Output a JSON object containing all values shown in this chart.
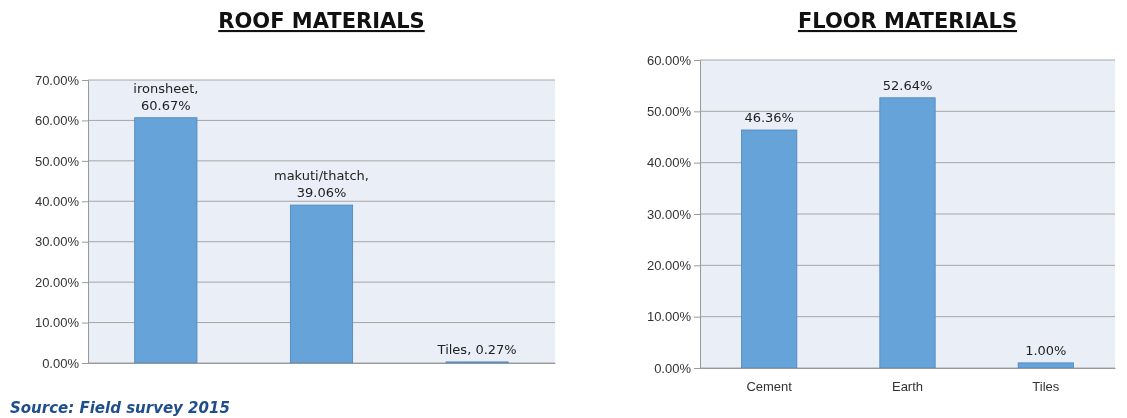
{
  "chart_data": [
    {
      "type": "bar",
      "title": "ROOF MATERIALS",
      "categories": [
        null,
        null,
        null
      ],
      "values": [
        60.67,
        39.06,
        0.27
      ],
      "color": "#66a3d8",
      "value_labels": [
        "ironsheet,\n60.67%",
        "makuti/thatch,\n39.06%",
        "Tiles, 0.27%"
      ],
      "ylim": [
        0,
        70
      ],
      "yticks": [
        {
          "value": 0,
          "label": "0.00%"
        },
        {
          "value": 10,
          "label": "10.00%"
        },
        {
          "value": 20,
          "label": "20.00%"
        },
        {
          "value": 30,
          "label": "30.00%"
        },
        {
          "value": 40,
          "label": "40.00%"
        },
        {
          "value": 50,
          "label": "50.00%"
        },
        {
          "value": 60,
          "label": "60.00%"
        },
        {
          "value": 70,
          "label": "70.00%"
        }
      ],
      "grid": "y",
      "annotations": [
        "Source: Field survey 2015"
      ]
    },
    {
      "type": "bar",
      "title": "FLOOR MATERIALS",
      "categories": [
        "Cement",
        "Earth",
        "Tiles"
      ],
      "values": [
        46.36,
        52.64,
        1.0
      ],
      "color": "#66a3d8",
      "value_labels": [
        "46.36%",
        "52.64%",
        "1.00%"
      ],
      "ylim": [
        0,
        60
      ],
      "yticks": [
        {
          "value": 0,
          "label": "0.00%"
        },
        {
          "value": 10,
          "label": "10.00%"
        },
        {
          "value": 20,
          "label": "20.00%"
        },
        {
          "value": 30,
          "label": "30.00%"
        },
        {
          "value": 40,
          "label": "40.00%"
        },
        {
          "value": 50,
          "label": "50.00%"
        },
        {
          "value": 60,
          "label": "60.00%"
        }
      ],
      "grid": "y"
    }
  ]
}
